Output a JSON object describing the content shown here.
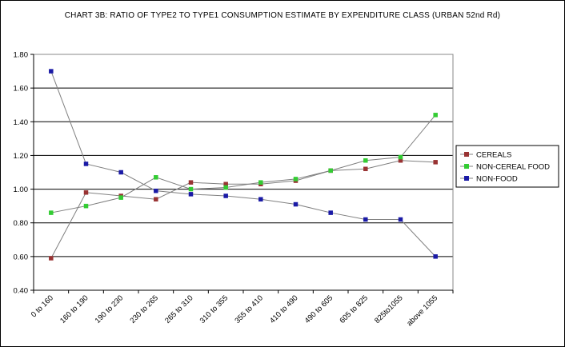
{
  "chart_data": {
    "type": "line",
    "title": "CHART 3B: RATIO OF TYPE2 TO TYPE1 CONSUMPTION ESTIMATE BY EXPENDITURE CLASS (URBAN 52nd Rd)",
    "xlabel": "",
    "ylabel": "",
    "categories": [
      "0 to 160",
      "160 to 190",
      "190 to 230",
      "230 to 265",
      "265 to 310",
      "310 to 355",
      "355 to 410",
      "410 to 490",
      "490 to 605",
      "605 to 825",
      "825to1055",
      "above 1055"
    ],
    "ylim": [
      0.4,
      1.8
    ],
    "yticks": [
      "0.40",
      "0.60",
      "0.80",
      "1.00",
      "1.20",
      "1.40",
      "1.60",
      "1.80"
    ],
    "grid": true,
    "legend_position": "right",
    "series": [
      {
        "name": "CEREALS",
        "color": "#993333",
        "values": [
          0.59,
          0.98,
          0.96,
          0.94,
          1.04,
          1.03,
          1.03,
          1.05,
          1.11,
          1.12,
          1.17,
          1.16
        ]
      },
      {
        "name": "NON-CEREAL FOOD",
        "color": "#33cc33",
        "values": [
          0.86,
          0.9,
          0.95,
          1.07,
          1.0,
          1.01,
          1.04,
          1.06,
          1.11,
          1.17,
          1.19,
          1.44
        ]
      },
      {
        "name": "NON-FOOD",
        "color": "#1a1aa6",
        "values": [
          1.7,
          1.15,
          1.1,
          0.99,
          0.97,
          0.96,
          0.94,
          0.91,
          0.86,
          0.82,
          0.82,
          0.6
        ]
      }
    ]
  }
}
